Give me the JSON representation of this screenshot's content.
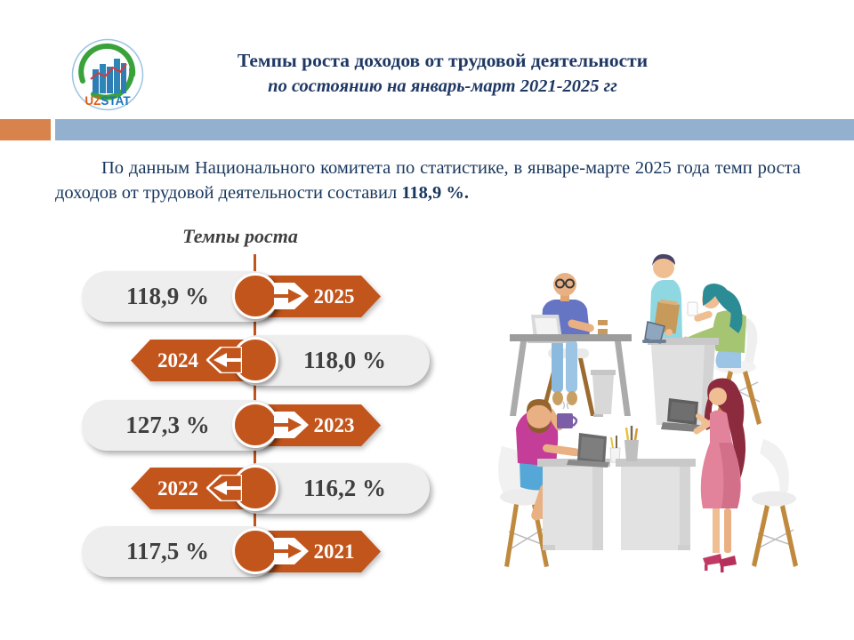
{
  "header": {
    "title": "Темпы роста доходов от трудовой деятельности",
    "subtitle": "по состоянию на январь-март 2021-2025 гг",
    "logo_uz": "UZ",
    "logo_stat": "STAT"
  },
  "accent_bar": {
    "orange": "#D8834B",
    "blue": "#93B1CE"
  },
  "paragraph": {
    "text": "По данным Национального комитета по статистике, в январе-марте 2025 года темп роста доходов от трудовой деятельности составил ",
    "bold_value": "118,9 %."
  },
  "timeline": {
    "title": "Темпы роста",
    "accent_color": "#C2551C",
    "rows": [
      {
        "year": "2025",
        "value": "118,9 %",
        "direction": "right"
      },
      {
        "year": "2024",
        "value": "118,0 %",
        "direction": "left"
      },
      {
        "year": "2023",
        "value": "127,3 %",
        "direction": "right"
      },
      {
        "year": "2022",
        "value": "116,2 %",
        "direction": "left"
      },
      {
        "year": "2021",
        "value": "117,5 %",
        "direction": "right"
      }
    ]
  },
  "chart_data": {
    "type": "bar",
    "title": "Темпы роста",
    "subtitle": "Темпы роста доходов от трудовой деятельности, январь-март 2021-2025 гг",
    "categories": [
      "2025",
      "2024",
      "2023",
      "2022",
      "2021"
    ],
    "values": [
      118.9,
      118.0,
      127.3,
      116.2,
      117.5
    ],
    "value_labels": [
      "118,9 %",
      "118,0 %",
      "127,3 %",
      "116,2 %",
      "117,5 %"
    ],
    "unit": "%",
    "layout": "vertical-timeline, years alternate right/left, newest on top",
    "accent_color": "#C2551C"
  }
}
